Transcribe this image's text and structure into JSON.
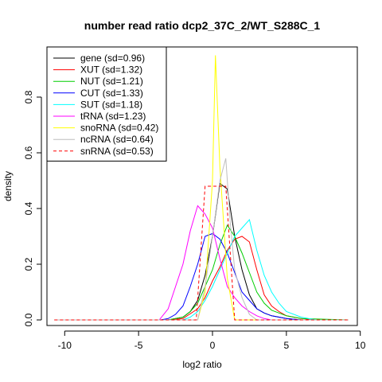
{
  "chart_data": {
    "type": "line",
    "title": "number read ratio dcp2_37C_2/WT_S288C_1",
    "xlabel": "log2 ratio",
    "ylabel": "density",
    "xlim": [
      -11.2,
      9.8
    ],
    "ylim": [
      -0.02,
      0.98
    ],
    "xticks": [
      -10,
      -5,
      0,
      5,
      10
    ],
    "yticks": [
      0.0,
      0.2,
      0.4,
      0.6,
      0.8
    ],
    "grid": false,
    "legend_position": "top-left",
    "series": [
      {
        "name": "gene (sd=0.96)",
        "color": "#000000",
        "dash": "solid",
        "x": [
          -10.7,
          -4.0,
          -3.0,
          -2.5,
          -2.0,
          -1.5,
          -1.0,
          -0.5,
          0.0,
          0.5,
          1.0,
          1.5,
          2.0,
          2.5,
          3.0,
          3.5,
          4.0,
          5.0,
          6.0,
          9.2
        ],
        "y": [
          0,
          0,
          0,
          0.005,
          0.01,
          0.03,
          0.07,
          0.16,
          0.3,
          0.49,
          0.47,
          0.3,
          0.18,
          0.09,
          0.04,
          0.025,
          0.015,
          0.005,
          0,
          0
        ]
      },
      {
        "name": "XUT (sd=1.32)",
        "color": "#ff0000",
        "dash": "solid",
        "x": [
          -10.7,
          -3.0,
          -2.0,
          -1.0,
          -0.5,
          0.0,
          0.5,
          1.0,
          1.5,
          2.0,
          2.5,
          3.0,
          3.5,
          4.0,
          4.5,
          5.0,
          6.0,
          7.0,
          9.2
        ],
        "y": [
          0,
          0,
          0.005,
          0.04,
          0.08,
          0.14,
          0.19,
          0.25,
          0.29,
          0.3,
          0.28,
          0.18,
          0.09,
          0.05,
          0.03,
          0.015,
          0.005,
          0,
          0
        ]
      },
      {
        "name": "NUT (sd=1.21)",
        "color": "#00cd00",
        "dash": "solid",
        "x": [
          -10.7,
          -3.0,
          -2.0,
          -1.5,
          -1.0,
          -0.5,
          0.0,
          0.5,
          1.0,
          1.5,
          2.0,
          2.5,
          3.0,
          3.5,
          4.0,
          5.0,
          6.0,
          9.2
        ],
        "y": [
          0,
          0,
          0.01,
          0.03,
          0.06,
          0.12,
          0.18,
          0.27,
          0.34,
          0.3,
          0.24,
          0.17,
          0.1,
          0.06,
          0.035,
          0.015,
          0.005,
          0
        ]
      },
      {
        "name": "CUT (sd=1.33)",
        "color": "#0000ff",
        "dash": "solid",
        "x": [
          -10.7,
          -3.5,
          -3.0,
          -2.5,
          -2.0,
          -1.5,
          -1.0,
          -0.5,
          0.0,
          0.5,
          1.0,
          1.5,
          2.0,
          2.5,
          3.0,
          3.5,
          4.0,
          5.0,
          6.0,
          9.2
        ],
        "y": [
          0,
          0,
          0.005,
          0.02,
          0.05,
          0.12,
          0.2,
          0.3,
          0.31,
          0.29,
          0.24,
          0.17,
          0.1,
          0.07,
          0.04,
          0.025,
          0.015,
          0.005,
          0,
          0
        ]
      },
      {
        "name": "SUT (sd=1.18)",
        "color": "#00ffff",
        "dash": "solid",
        "x": [
          -10.7,
          -2.0,
          -1.5,
          -1.0,
          -0.5,
          0.0,
          0.5,
          1.0,
          1.5,
          2.0,
          2.5,
          3.0,
          3.5,
          4.0,
          4.5,
          5.0,
          6.0,
          7.0,
          9.2
        ],
        "y": [
          0,
          0,
          0.01,
          0.03,
          0.07,
          0.12,
          0.18,
          0.24,
          0.3,
          0.33,
          0.36,
          0.25,
          0.16,
          0.1,
          0.06,
          0.03,
          0.01,
          0,
          0
        ]
      },
      {
        "name": "tRNA (sd=1.23)",
        "color": "#ff00ff",
        "dash": "solid",
        "x": [
          -10.7,
          -3.6,
          -3.0,
          -2.5,
          -2.0,
          -1.5,
          -1.0,
          -0.5,
          0.0,
          0.5,
          1.0,
          1.5,
          2.0,
          2.5,
          3.0,
          3.5,
          4.0,
          9.2
        ],
        "y": [
          0,
          0,
          0.04,
          0.12,
          0.2,
          0.32,
          0.41,
          0.38,
          0.33,
          0.22,
          0.12,
          0.08,
          0.05,
          0.03,
          0.015,
          0.005,
          0,
          0
        ]
      },
      {
        "name": "snoRNA (sd=0.42)",
        "color": "#ffff00",
        "dash": "solid",
        "x": [
          -10.7,
          -1.0,
          -0.5,
          0.0,
          0.2,
          0.5,
          1.0,
          1.5,
          9.2
        ],
        "y": [
          0,
          0,
          0.1,
          0.5,
          0.95,
          0.55,
          0.15,
          0,
          0
        ]
      },
      {
        "name": "ncRNA (sd=0.64)",
        "color": "#bebebe",
        "dash": "solid",
        "x": [
          -10.7,
          -1.0,
          -0.5,
          0.0,
          0.5,
          0.9,
          1.2,
          1.5,
          2.0,
          2.5,
          3.0,
          9.2
        ],
        "y": [
          0,
          0,
          0.12,
          0.3,
          0.5,
          0.58,
          0.35,
          0.18,
          0.08,
          0.02,
          0,
          0
        ]
      },
      {
        "name": "snRNA (sd=0.53)",
        "color": "#ff0000",
        "dash": "dashed",
        "x": [
          -10.7,
          -1.1,
          -0.5,
          0.9,
          1.5,
          9.2
        ],
        "y": [
          0,
          0,
          0.48,
          0.48,
          0,
          0
        ]
      }
    ]
  }
}
